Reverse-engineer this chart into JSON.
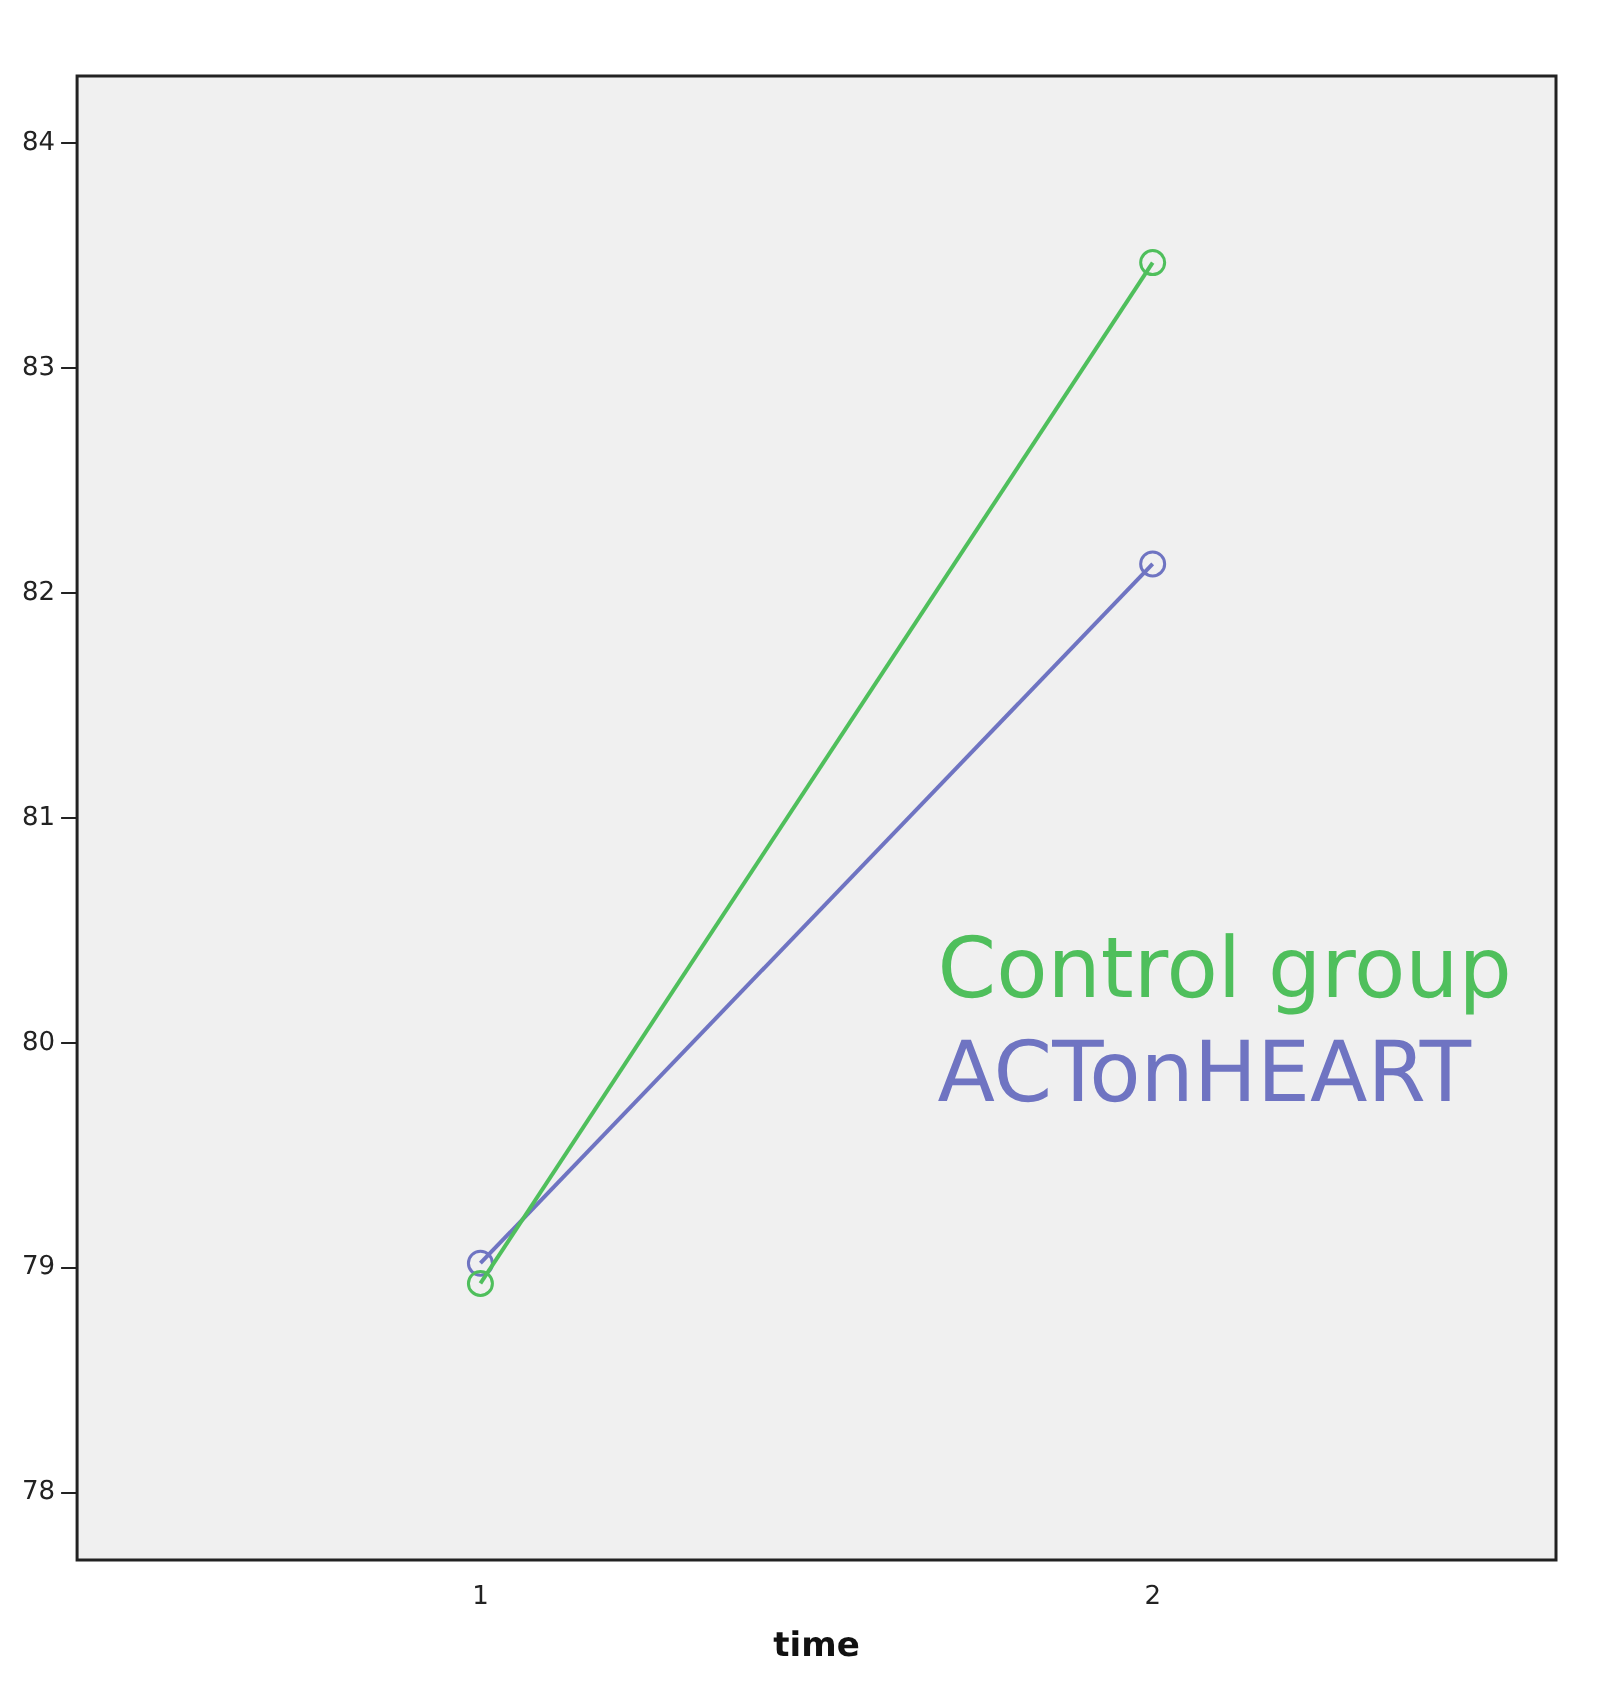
{
  "chart_data": {
    "type": "line",
    "xlabel": "time",
    "x": [
      1,
      2
    ],
    "series": [
      {
        "name": "Control group",
        "color": "#4fbf5c",
        "values": [
          78.93,
          83.47
        ]
      },
      {
        "name": "ACTonHEART",
        "color": "#6f74c2",
        "values": [
          79.02,
          82.13
        ]
      }
    ],
    "xlim": [
      0.4,
      2.6
    ],
    "xticks": [
      1,
      2
    ],
    "ylim": [
      77.7,
      84.3
    ],
    "yticks": [
      78,
      79,
      80,
      81,
      82,
      83,
      84
    ],
    "grid": false,
    "legend": false,
    "marker": "circle",
    "line_style": "solid"
  }
}
